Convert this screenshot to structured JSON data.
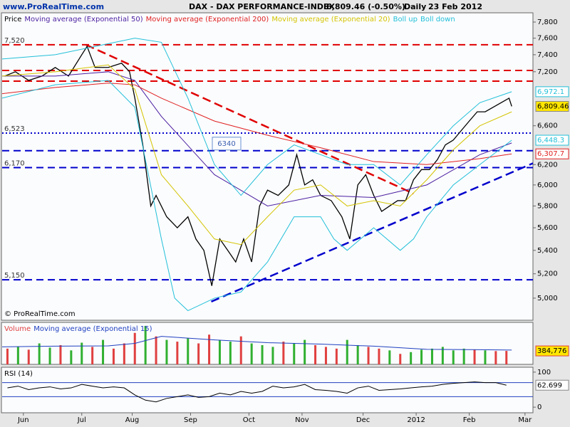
{
  "header": {
    "site": "www.ProRealTime.com",
    "title": "DAX - DAX PERFORMANCE-INDEX",
    "quote": "6,809.46 (-0.50%)",
    "period": "Daily",
    "date": "23 Feb 2012"
  },
  "chart_data": [
    {
      "type": "line",
      "yscale": "log",
      "copyright": "© ProRealTime.com",
      "xlim": [
        0,
        200
      ],
      "ylim": [
        4825,
        7917
      ],
      "yticks": [
        {
          "value": 5000,
          "label": "5,000"
        },
        {
          "value": 5200,
          "label": "5,200"
        },
        {
          "value": 5400,
          "label": "5,400"
        },
        {
          "value": 5600,
          "label": "5,600"
        },
        {
          "value": 5800,
          "label": "5,800"
        },
        {
          "value": 6000,
          "label": "6,000"
        },
        {
          "value": 6200,
          "label": "6,200"
        },
        {
          "value": 6600,
          "label": "6,600"
        },
        {
          "value": 7200,
          "label": "7,200"
        },
        {
          "value": 7400,
          "label": "7,400"
        },
        {
          "value": 7600,
          "label": "7,600"
        },
        {
          "value": 7800,
          "label": "7,800"
        }
      ],
      "series": [
        {
          "name": "Price",
          "color": "#000000",
          "last_label": "6,809.46",
          "label_fill": "#ffe600",
          "x": [
            1,
            5,
            10,
            15,
            20,
            25,
            30,
            32,
            35,
            40,
            45,
            48,
            50,
            53,
            56,
            58,
            62,
            66,
            70,
            73,
            76,
            79,
            82,
            85,
            88,
            91,
            94,
            97,
            100,
            104,
            108,
            111,
            114,
            117,
            120,
            124,
            128,
            131,
            134,
            137,
            140,
            143,
            146,
            149,
            152,
            155,
            158,
            161,
            164,
            167,
            170,
            173,
            176,
            179,
            182,
            185,
            188,
            191,
            192
          ],
          "values": [
            7150,
            7200,
            7100,
            7150,
            7250,
            7150,
            7400,
            7500,
            7250,
            7250,
            7300,
            7200,
            6900,
            6400,
            5800,
            5900,
            5700,
            5600,
            5700,
            5500,
            5400,
            5100,
            5500,
            5400,
            5300,
            5500,
            5300,
            5800,
            5950,
            5900,
            6000,
            6300,
            6000,
            6050,
            5900,
            5850,
            5700,
            5500,
            6000,
            6100,
            5900,
            5750,
            5800,
            5850,
            5850,
            6050,
            6150,
            6150,
            6250,
            6400,
            6450,
            6550,
            6650,
            6750,
            6750,
            6800,
            6850,
            6900,
            6809.46
          ]
        },
        {
          "name": "Moving average (Exponential 50)",
          "color": "#4b1fa0",
          "x": [
            0,
            20,
            40,
            50,
            60,
            80,
            100,
            120,
            140,
            160,
            180,
            192
          ],
          "values": [
            7150,
            7150,
            7200,
            7100,
            6700,
            6100,
            5800,
            5900,
            5880,
            6000,
            6300,
            6420
          ]
        },
        {
          "name": "Moving average (Exponential 200)",
          "color": "#e02020",
          "last_label": "6,307.7",
          "x": [
            0,
            20,
            40,
            50,
            60,
            80,
            100,
            120,
            140,
            160,
            180,
            192
          ],
          "values": [
            6950,
            7020,
            7070,
            7050,
            6900,
            6650,
            6500,
            6370,
            6230,
            6200,
            6260,
            6307.7
          ]
        },
        {
          "name": "Moving average (Exponential 20)",
          "color": "#d4c400",
          "x": [
            0,
            20,
            40,
            50,
            60,
            70,
            80,
            90,
            100,
            110,
            120,
            130,
            140,
            150,
            160,
            170,
            180,
            192
          ],
          "values": [
            7150,
            7200,
            7280,
            7000,
            6100,
            5800,
            5500,
            5450,
            5700,
            5950,
            6000,
            5800,
            5850,
            5800,
            6050,
            6350,
            6600,
            6750
          ]
        },
        {
          "name": "Boll up",
          "color": "#22c0d8",
          "last_label": "6,972.1",
          "x": [
            0,
            20,
            35,
            50,
            60,
            70,
            80,
            90,
            100,
            110,
            120,
            130,
            140,
            150,
            160,
            170,
            180,
            192
          ],
          "values": [
            7350,
            7400,
            7500,
            7600,
            7550,
            6900,
            6200,
            5900,
            6200,
            6400,
            6300,
            6200,
            6200,
            6000,
            6300,
            6600,
            6850,
            6972.1
          ]
        },
        {
          "name": "Boll down",
          "color": "#22c0d8",
          "last_label": "6,448.3",
          "x": [
            0,
            20,
            40,
            50,
            60,
            65,
            70,
            80,
            90,
            100,
            110,
            120,
            125,
            130,
            140,
            150,
            155,
            160,
            170,
            180,
            192
          ],
          "values": [
            6900,
            7050,
            7100,
            6800,
            5500,
            5000,
            4900,
            5000,
            5050,
            5300,
            5700,
            5700,
            5500,
            5400,
            5600,
            5400,
            5500,
            5700,
            6000,
            6200,
            6448.3
          ]
        }
      ],
      "levels": [
        {
          "value": 7520,
          "label": "7,520",
          "color": "#e00000",
          "style": "dashed"
        },
        {
          "value": 7215,
          "color": "#e00000",
          "style": "dashed"
        },
        {
          "value": 7092,
          "color": "#e00000",
          "style": "dashed"
        },
        {
          "value": 6523,
          "label": "6,523",
          "color": "#0000cc",
          "style": "dotted"
        },
        {
          "value": 6340,
          "label": "6340",
          "color": "#0000cc",
          "style": "dashed",
          "boxed": true
        },
        {
          "value": 6170,
          "label": "6,170",
          "color": "#0000cc",
          "style": "dashed"
        },
        {
          "value": 5150,
          "label": "5,150",
          "color": "#0000cc",
          "style": "dashed"
        }
      ],
      "trendlines": [
        {
          "x": [
            31.6,
            155
          ],
          "values": [
            7520,
            5917
          ],
          "color": "#e00000"
        },
        {
          "x": [
            78.8,
            200
          ],
          "values": [
            4972,
            6213
          ],
          "color": "#0000cc"
        }
      ]
    },
    {
      "type": "bar",
      "xlim": [
        0,
        200
      ],
      "ylim": [
        0,
        1200000
      ],
      "series": [
        {
          "name": "Volume",
          "color": "#e04040",
          "last_label": "384,776",
          "label_fill": "#ffe600",
          "x": [
            2,
            6,
            10,
            14,
            18,
            22,
            26,
            30,
            34,
            38,
            42,
            46,
            50,
            54,
            58,
            62,
            66,
            70,
            74,
            78,
            82,
            86,
            90,
            94,
            98,
            102,
            106,
            110,
            114,
            118,
            122,
            126,
            130,
            134,
            138,
            142,
            146,
            150,
            154,
            158,
            162,
            166,
            170,
            174,
            178,
            182,
            186,
            190
          ],
          "values": [
            450000,
            500000,
            420000,
            600000,
            480000,
            550000,
            400000,
            620000,
            500000,
            700000,
            450000,
            600000,
            900000,
            1100000,
            800000,
            700000,
            650000,
            750000,
            600000,
            850000,
            700000,
            650000,
            800000,
            600000,
            550000,
            500000,
            650000,
            600000,
            700000,
            550000,
            500000,
            450000,
            700000,
            550000,
            500000,
            450000,
            400000,
            300000,
            350000,
            420000,
            450000,
            500000,
            400000,
            450000,
            420000,
            400000,
            380000,
            384776
          ],
          "colors": [
            "#e04040",
            "#30b030",
            "#e04040",
            "#30b030",
            "#30b030",
            "#e04040",
            "#30b030",
            "#30b030",
            "#e04040",
            "#30b030",
            "#e04040",
            "#e04040",
            "#e04040",
            "#30b030",
            "#e04040",
            "#30b030",
            "#e04040",
            "#30b030",
            "#e04040",
            "#e04040",
            "#30b030",
            "#30b030",
            "#e04040",
            "#30b030",
            "#30b030",
            "#30b030",
            "#e04040",
            "#30b030",
            "#30b030",
            "#e04040",
            "#e04040",
            "#e04040",
            "#30b030",
            "#30b030",
            "#e04040",
            "#e04040",
            "#30b030",
            "#e04040",
            "#30b030",
            "#30b030",
            "#30b030",
            "#30b030",
            "#30b030",
            "#30b030",
            "#e04040",
            "#30b030",
            "#e04040",
            "#e04040"
          ]
        },
        {
          "name": "Moving average (Exponential 15)",
          "color": "#2040c0",
          "type": "line",
          "x": [
            0,
            20,
            40,
            50,
            60,
            70,
            80,
            100,
            120,
            140,
            160,
            180,
            192
          ],
          "values": [
            500000,
            520000,
            530000,
            600000,
            800000,
            750000,
            700000,
            620000,
            580000,
            520000,
            430000,
            420000,
            410000
          ]
        }
      ]
    },
    {
      "type": "line",
      "xlim": [
        0,
        200
      ],
      "ylim": [
        -16,
        114
      ],
      "yticks": [
        0,
        100
      ],
      "xticks": [
        {
          "value": 8,
          "label": "Jun"
        },
        {
          "value": 30,
          "label": "Jul"
        },
        {
          "value": 49,
          "label": "Aug"
        },
        {
          "value": 71,
          "label": "Sep"
        },
        {
          "value": 93,
          "label": "Oct"
        },
        {
          "value": 113,
          "label": "Nov"
        },
        {
          "value": 136,
          "label": "Dec"
        },
        {
          "value": 156,
          "label": "2012"
        },
        {
          "value": 176,
          "label": "Feb"
        },
        {
          "value": 197,
          "label": "Mar"
        }
      ],
      "series": [
        {
          "name": "RSI (14)",
          "color": "#000000",
          "last_label": "62.699",
          "label_fill": "#ffffff",
          "x": [
            2,
            6,
            10,
            14,
            18,
            22,
            26,
            30,
            34,
            38,
            42,
            46,
            50,
            54,
            58,
            62,
            66,
            70,
            74,
            78,
            82,
            86,
            90,
            94,
            98,
            102,
            106,
            110,
            114,
            118,
            122,
            126,
            130,
            134,
            138,
            142,
            146,
            150,
            154,
            158,
            162,
            166,
            170,
            174,
            178,
            182,
            186,
            190
          ],
          "values": [
            55,
            60,
            50,
            55,
            58,
            52,
            55,
            65,
            60,
            55,
            58,
            55,
            35,
            20,
            15,
            25,
            30,
            35,
            28,
            30,
            40,
            35,
            45,
            40,
            45,
            60,
            55,
            58,
            65,
            50,
            48,
            45,
            40,
            55,
            60,
            48,
            50,
            52,
            55,
            58,
            60,
            65,
            68,
            70,
            72,
            70,
            70,
            62.699
          ]
        }
      ],
      "levels": [
        {
          "value": 70,
          "color": "#2040c0",
          "style": "solid"
        },
        {
          "value": 30,
          "color": "#2040c0",
          "style": "solid"
        }
      ]
    }
  ]
}
